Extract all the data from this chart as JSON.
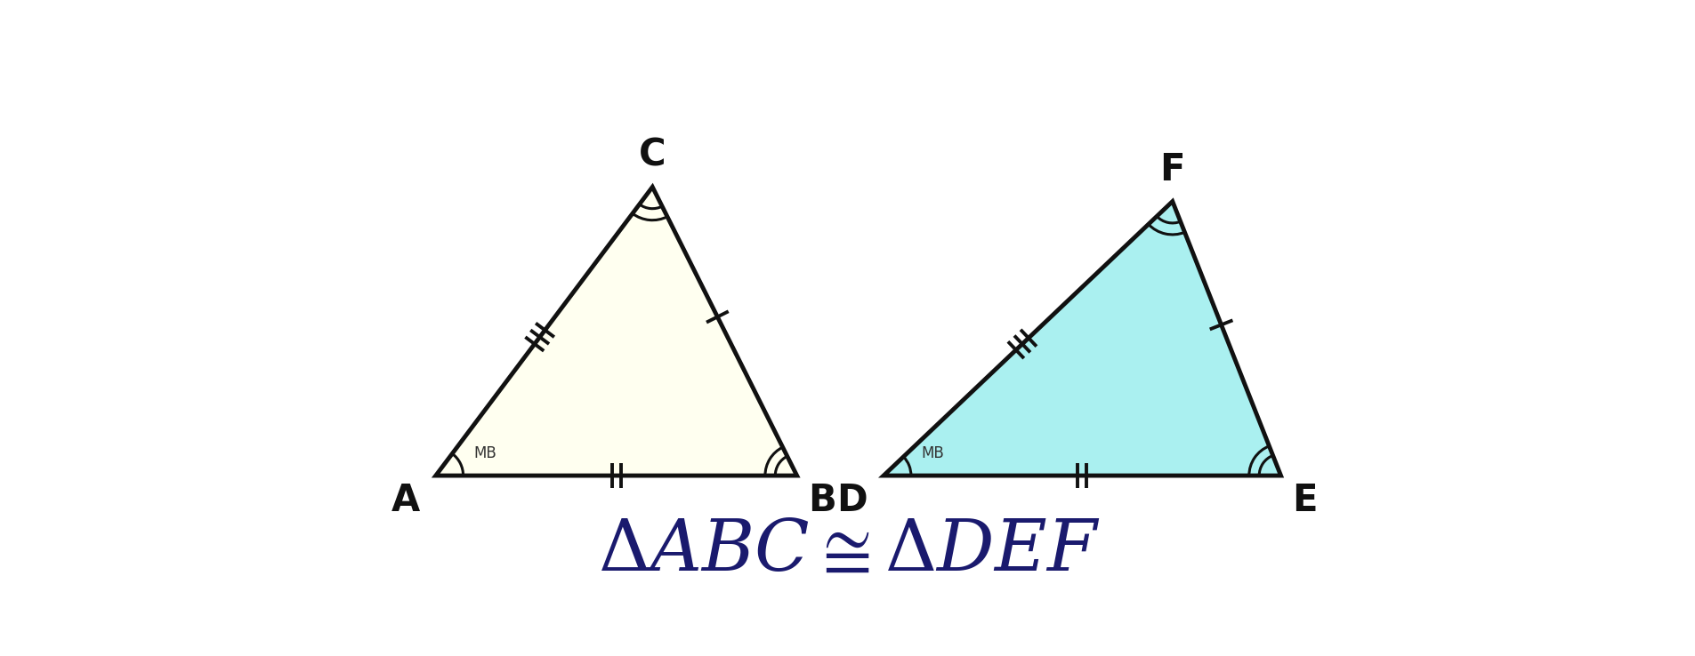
{
  "bg_color": "#ffffff",
  "tri1": {
    "A": [
      0.8,
      0.0
    ],
    "B": [
      5.8,
      0.0
    ],
    "C": [
      3.8,
      4.0
    ],
    "fill": "#fffff0",
    "edge": "#111111",
    "linewidth": 3.5,
    "label_A": "A",
    "label_B": "B",
    "label_C": "C"
  },
  "tri2": {
    "D": [
      7.0,
      0.0
    ],
    "E": [
      12.5,
      0.0
    ],
    "F": [
      11.0,
      3.8
    ],
    "fill": "#aaf0f0",
    "edge": "#111111",
    "linewidth": 3.5,
    "label_D": "D",
    "label_E": "E",
    "label_F": "F"
  },
  "formula_fontsize": 58,
  "formula_color": "#1a1a6e",
  "label_fontsize": 30,
  "label_color": "#111111",
  "mb_fontsize": 12,
  "mb_color": "#333333"
}
